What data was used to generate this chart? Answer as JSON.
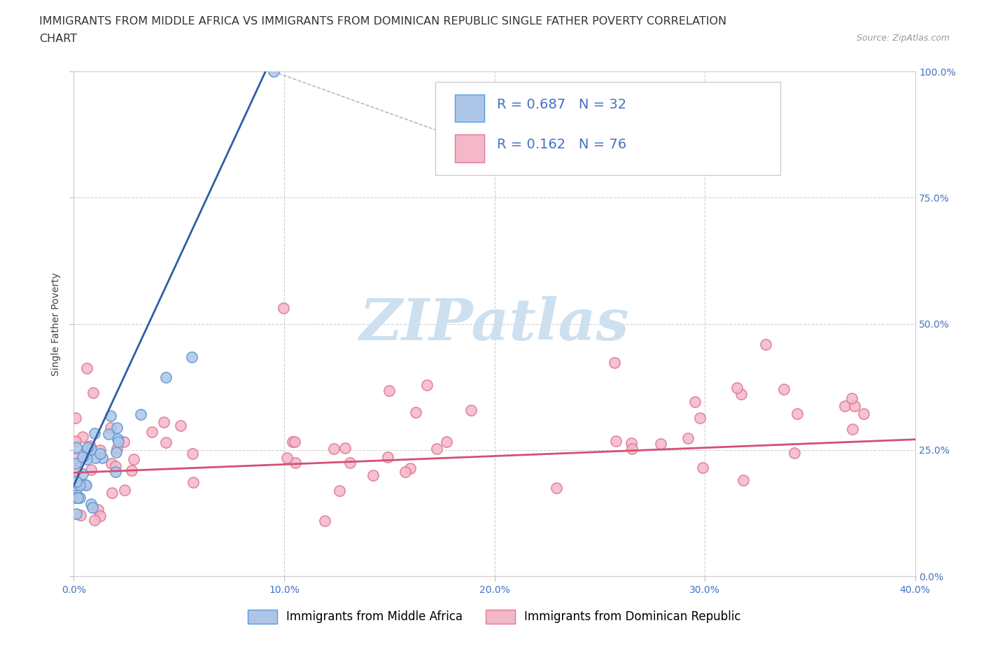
{
  "title_line1": "IMMIGRANTS FROM MIDDLE AFRICA VS IMMIGRANTS FROM DOMINICAN REPUBLIC SINGLE FATHER POVERTY CORRELATION",
  "title_line2": "CHART",
  "source": "Source: ZipAtlas.com",
  "ylabel": "Single Father Poverty",
  "xlim": [
    0.0,
    0.4
  ],
  "ylim": [
    0.0,
    1.0
  ],
  "xticks": [
    0.0,
    0.1,
    0.2,
    0.3,
    0.4
  ],
  "yticks": [
    0.0,
    0.25,
    0.5,
    0.75,
    1.0
  ],
  "xticklabels": [
    "0.0%",
    "10.0%",
    "20.0%",
    "30.0%",
    "40.0%"
  ],
  "yticklabels": [
    "0.0%",
    "25.0%",
    "50.0%",
    "75.0%",
    "100.0%"
  ],
  "r_blue": 0.687,
  "n_blue": 32,
  "r_pink": 0.162,
  "n_pink": 76,
  "blue_face_color": "#adc6e8",
  "blue_edge_color": "#5b9bd5",
  "pink_face_color": "#f4b8c8",
  "pink_edge_color": "#e07898",
  "blue_line_color": "#2e5fa3",
  "pink_line_color": "#d45070",
  "legend_label_blue": "Immigrants from Middle Africa",
  "legend_label_pink": "Immigrants from Dominican Republic",
  "watermark": "ZIPatlas",
  "title_fontsize": 11.5,
  "axis_label_fontsize": 10,
  "tick_fontsize": 10,
  "legend_fontsize": 12,
  "r_n_fontsize": 14
}
